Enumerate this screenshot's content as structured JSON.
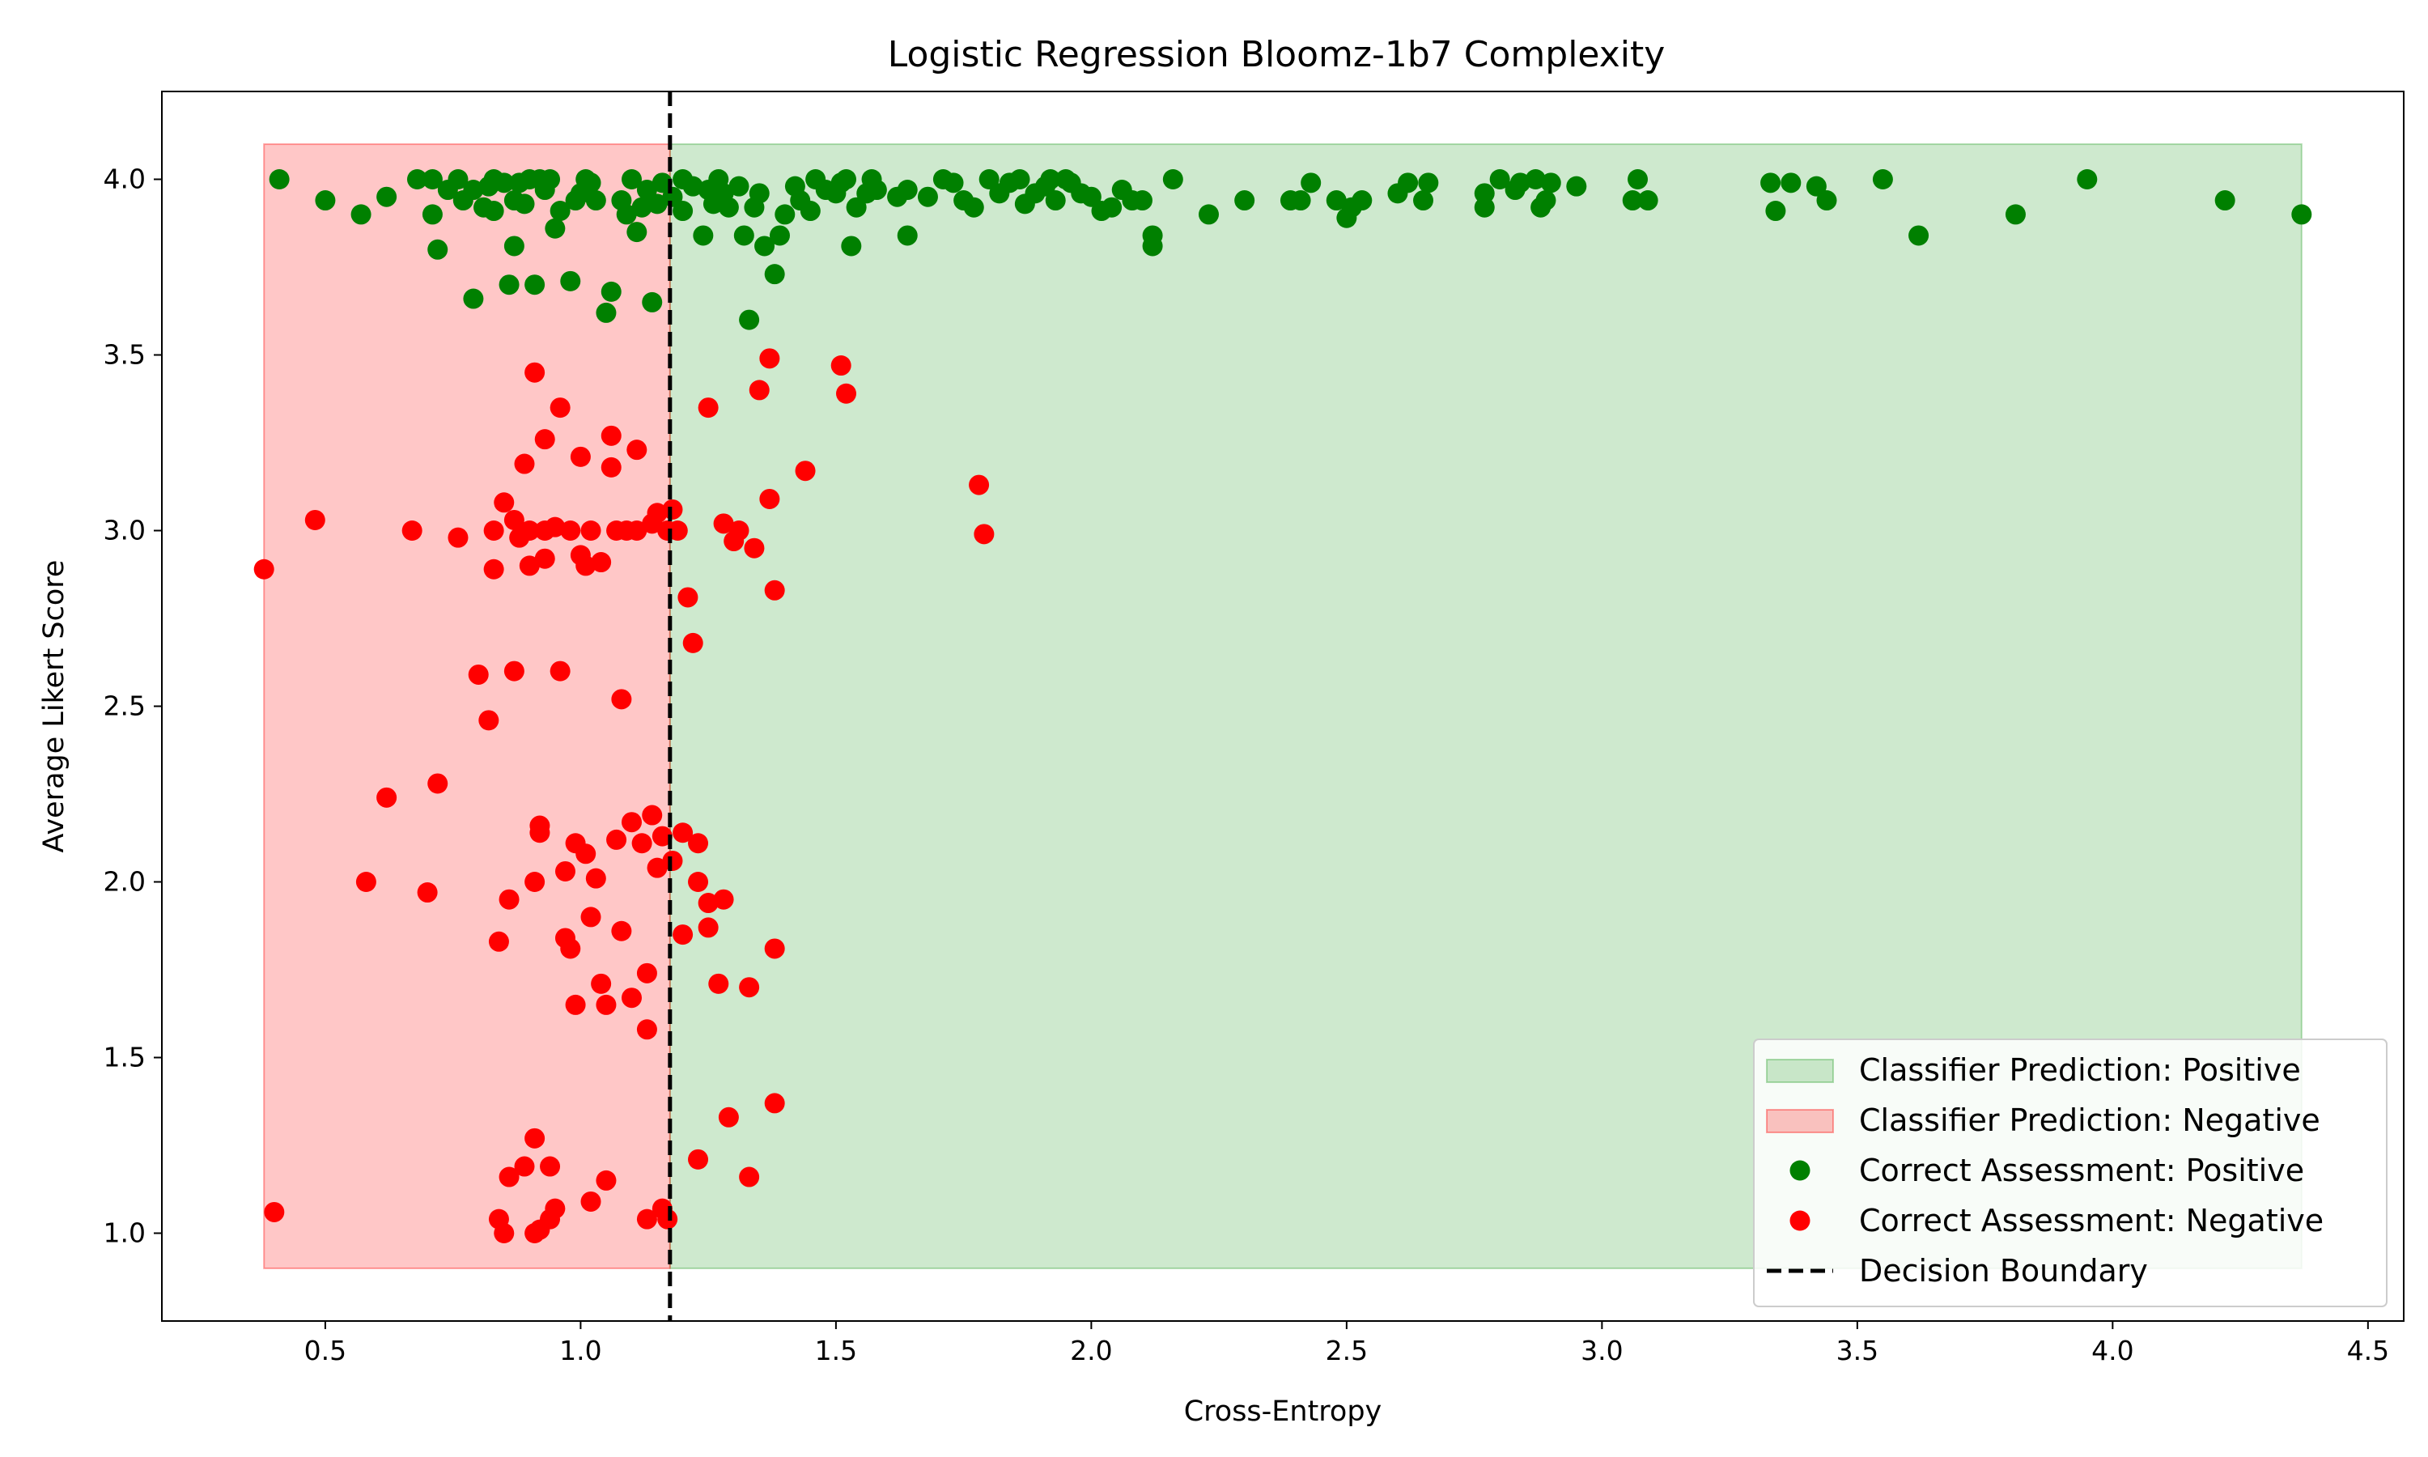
{
  "chart_data": {
    "type": "scatter",
    "title": "Logistic Regression Bloomz-1b7 Complexity",
    "xlabel": "Cross-Entropy",
    "ylabel": "Average Likert Score",
    "xlim": [
      0.18,
      4.57
    ],
    "ylim": [
      0.75,
      4.25
    ],
    "xticks": [
      "0.5",
      "1.0",
      "1.5",
      "2.0",
      "2.5",
      "3.0",
      "3.5",
      "4.0",
      "4.5"
    ],
    "yticks": [
      "1.0",
      "1.5",
      "2.0",
      "2.5",
      "3.0",
      "3.5",
      "4.0"
    ],
    "decision_boundary": 1.175,
    "regions": [
      {
        "name": "Classifier Prediction: Positive",
        "x": [
          1.175,
          4.37
        ],
        "y": [
          0.9,
          4.1
        ],
        "color": "#2ca02c"
      },
      {
        "name": "Classifier Prediction: Negative",
        "x": [
          0.38,
          1.175
        ],
        "y": [
          0.9,
          4.1
        ],
        "color": "#ff0000"
      }
    ],
    "series": [
      {
        "name": "Correct Assessment: Positive",
        "color": "#008000",
        "points": [
          [
            0.41,
            4.0
          ],
          [
            0.5,
            3.94
          ],
          [
            0.57,
            3.9
          ],
          [
            0.62,
            3.95
          ],
          [
            0.68,
            4.0
          ],
          [
            0.71,
            4.0
          ],
          [
            0.71,
            3.9
          ],
          [
            0.72,
            3.8
          ],
          [
            0.74,
            3.97
          ],
          [
            0.76,
            4.0
          ],
          [
            0.77,
            3.94
          ],
          [
            0.79,
            3.66
          ],
          [
            0.79,
            3.97
          ],
          [
            0.81,
            3.92
          ],
          [
            0.82,
            3.98
          ],
          [
            0.83,
            4.0
          ],
          [
            0.83,
            3.91
          ],
          [
            0.85,
            3.99
          ],
          [
            0.86,
            3.7
          ],
          [
            0.87,
            3.81
          ],
          [
            0.87,
            3.94
          ],
          [
            0.88,
            3.99
          ],
          [
            0.89,
            3.93
          ],
          [
            0.9,
            4.0
          ],
          [
            0.91,
            3.7
          ],
          [
            0.92,
            4.0
          ],
          [
            0.93,
            3.97
          ],
          [
            0.94,
            4.0
          ],
          [
            0.95,
            3.86
          ],
          [
            0.96,
            3.91
          ],
          [
            0.98,
            3.71
          ],
          [
            0.99,
            3.94
          ],
          [
            1.0,
            3.96
          ],
          [
            1.01,
            4.0
          ],
          [
            1.02,
            3.99
          ],
          [
            1.03,
            3.94
          ],
          [
            1.05,
            3.62
          ],
          [
            1.06,
            3.68
          ],
          [
            1.08,
            3.94
          ],
          [
            1.09,
            3.9
          ],
          [
            1.1,
            4.0
          ],
          [
            1.11,
            3.85
          ],
          [
            1.12,
            3.92
          ],
          [
            1.13,
            3.97
          ],
          [
            1.14,
            3.65
          ],
          [
            1.15,
            3.93
          ],
          [
            1.16,
            3.99
          ],
          [
            1.18,
            3.95
          ],
          [
            1.2,
            4.0
          ],
          [
            1.2,
            3.91
          ],
          [
            1.22,
            3.98
          ],
          [
            1.24,
            3.84
          ],
          [
            1.25,
            3.97
          ],
          [
            1.26,
            3.93
          ],
          [
            1.27,
            4.0
          ],
          [
            1.28,
            3.96
          ],
          [
            1.29,
            3.92
          ],
          [
            1.31,
            3.98
          ],
          [
            1.32,
            3.84
          ],
          [
            1.33,
            3.6
          ],
          [
            1.34,
            3.92
          ],
          [
            1.35,
            3.96
          ],
          [
            1.36,
            3.81
          ],
          [
            1.38,
            3.73
          ],
          [
            1.39,
            3.84
          ],
          [
            1.4,
            3.9
          ],
          [
            1.42,
            3.98
          ],
          [
            1.43,
            3.94
          ],
          [
            1.45,
            3.91
          ],
          [
            1.46,
            4.0
          ],
          [
            1.48,
            3.97
          ],
          [
            1.5,
            3.96
          ],
          [
            1.51,
            3.99
          ],
          [
            1.52,
            4.0
          ],
          [
            1.53,
            3.81
          ],
          [
            1.54,
            3.92
          ],
          [
            1.56,
            3.96
          ],
          [
            1.57,
            4.0
          ],
          [
            1.58,
            3.97
          ],
          [
            1.62,
            3.95
          ],
          [
            1.64,
            3.84
          ],
          [
            1.64,
            3.97
          ],
          [
            1.68,
            3.95
          ],
          [
            1.71,
            4.0
          ],
          [
            1.73,
            3.99
          ],
          [
            1.75,
            3.94
          ],
          [
            1.77,
            3.92
          ],
          [
            1.8,
            4.0
          ],
          [
            1.82,
            3.96
          ],
          [
            1.84,
            3.99
          ],
          [
            1.86,
            4.0
          ],
          [
            1.87,
            3.93
          ],
          [
            1.89,
            3.96
          ],
          [
            1.91,
            3.98
          ],
          [
            1.92,
            4.0
          ],
          [
            1.93,
            3.94
          ],
          [
            1.95,
            4.0
          ],
          [
            1.96,
            3.99
          ],
          [
            1.98,
            3.96
          ],
          [
            2.0,
            3.95
          ],
          [
            2.02,
            3.91
          ],
          [
            2.04,
            3.92
          ],
          [
            2.06,
            3.97
          ],
          [
            2.08,
            3.94
          ],
          [
            2.1,
            3.94
          ],
          [
            2.12,
            3.81
          ],
          [
            2.12,
            3.84
          ],
          [
            2.16,
            4.0
          ],
          [
            2.23,
            3.9
          ],
          [
            2.3,
            3.94
          ],
          [
            2.39,
            3.94
          ],
          [
            2.41,
            3.94
          ],
          [
            2.43,
            3.99
          ],
          [
            2.48,
            3.94
          ],
          [
            2.5,
            3.89
          ],
          [
            2.51,
            3.92
          ],
          [
            2.53,
            3.94
          ],
          [
            2.6,
            3.96
          ],
          [
            2.62,
            3.99
          ],
          [
            2.65,
            3.94
          ],
          [
            2.66,
            3.99
          ],
          [
            2.77,
            3.92
          ],
          [
            2.77,
            3.96
          ],
          [
            2.8,
            4.0
          ],
          [
            2.83,
            3.97
          ],
          [
            2.84,
            3.99
          ],
          [
            2.87,
            4.0
          ],
          [
            2.88,
            3.92
          ],
          [
            2.89,
            3.94
          ],
          [
            2.9,
            3.99
          ],
          [
            2.95,
            3.98
          ],
          [
            3.06,
            3.94
          ],
          [
            3.07,
            4.0
          ],
          [
            3.09,
            3.94
          ],
          [
            3.33,
            3.99
          ],
          [
            3.34,
            3.91
          ],
          [
            3.37,
            3.99
          ],
          [
            3.42,
            3.98
          ],
          [
            3.44,
            3.94
          ],
          [
            3.55,
            4.0
          ],
          [
            3.62,
            3.84
          ],
          [
            3.81,
            3.9
          ],
          [
            3.95,
            4.0
          ],
          [
            4.22,
            3.94
          ],
          [
            4.37,
            3.9
          ]
        ]
      },
      {
        "name": "Correct Assessment: Negative",
        "color": "#ff0000",
        "points": [
          [
            0.38,
            2.89
          ],
          [
            0.4,
            1.06
          ],
          [
            0.48,
            3.03
          ],
          [
            0.58,
            2.0
          ],
          [
            0.62,
            2.24
          ],
          [
            0.67,
            3.0
          ],
          [
            0.7,
            1.97
          ],
          [
            0.72,
            2.28
          ],
          [
            0.76,
            2.98
          ],
          [
            0.8,
            2.59
          ],
          [
            0.82,
            2.46
          ],
          [
            0.83,
            3.0
          ],
          [
            0.83,
            2.89
          ],
          [
            0.84,
            1.04
          ],
          [
            0.84,
            1.83
          ],
          [
            0.85,
            1.0
          ],
          [
            0.85,
            3.08
          ],
          [
            0.86,
            1.95
          ],
          [
            0.86,
            1.16
          ],
          [
            0.87,
            2.6
          ],
          [
            0.87,
            3.03
          ],
          [
            0.88,
            2.98
          ],
          [
            0.89,
            1.19
          ],
          [
            0.89,
            3.19
          ],
          [
            0.9,
            2.9
          ],
          [
            0.9,
            3.0
          ],
          [
            0.91,
            3.45
          ],
          [
            0.91,
            2.0
          ],
          [
            0.91,
            1.27
          ],
          [
            0.91,
            1.0
          ],
          [
            0.92,
            2.14
          ],
          [
            0.92,
            2.16
          ],
          [
            0.92,
            1.01
          ],
          [
            0.93,
            2.92
          ],
          [
            0.93,
            3.0
          ],
          [
            0.93,
            3.26
          ],
          [
            0.94,
            1.19
          ],
          [
            0.94,
            1.04
          ],
          [
            0.95,
            1.07
          ],
          [
            0.95,
            3.01
          ],
          [
            0.96,
            3.35
          ],
          [
            0.96,
            2.6
          ],
          [
            0.97,
            2.03
          ],
          [
            0.97,
            1.84
          ],
          [
            0.98,
            3.0
          ],
          [
            0.98,
            1.81
          ],
          [
            0.99,
            2.11
          ],
          [
            0.99,
            1.65
          ],
          [
            1.0,
            3.21
          ],
          [
            1.0,
            2.93
          ],
          [
            1.01,
            2.08
          ],
          [
            1.01,
            2.9
          ],
          [
            1.02,
            1.9
          ],
          [
            1.02,
            3.0
          ],
          [
            1.02,
            1.09
          ],
          [
            1.03,
            2.01
          ],
          [
            1.04,
            1.71
          ],
          [
            1.04,
            2.91
          ],
          [
            1.05,
            1.15
          ],
          [
            1.05,
            1.65
          ],
          [
            1.06,
            3.27
          ],
          [
            1.06,
            3.18
          ],
          [
            1.07,
            2.12
          ],
          [
            1.07,
            3.0
          ],
          [
            1.08,
            1.86
          ],
          [
            1.08,
            2.52
          ],
          [
            1.09,
            3.0
          ],
          [
            1.1,
            1.67
          ],
          [
            1.1,
            2.17
          ],
          [
            1.11,
            3.23
          ],
          [
            1.11,
            3.0
          ],
          [
            1.12,
            2.11
          ],
          [
            1.13,
            1.58
          ],
          [
            1.13,
            1.74
          ],
          [
            1.13,
            1.04
          ],
          [
            1.14,
            3.02
          ],
          [
            1.14,
            2.19
          ],
          [
            1.15,
            3.05
          ],
          [
            1.15,
            2.04
          ],
          [
            1.16,
            2.13
          ],
          [
            1.16,
            1.07
          ],
          [
            1.17,
            1.04
          ],
          [
            1.17,
            3.0
          ],
          [
            1.18,
            2.06
          ],
          [
            1.18,
            3.06
          ],
          [
            1.19,
            3.0
          ],
          [
            1.2,
            2.14
          ],
          [
            1.2,
            1.85
          ],
          [
            1.21,
            2.81
          ],
          [
            1.22,
            2.68
          ],
          [
            1.23,
            2.11
          ],
          [
            1.23,
            2.0
          ],
          [
            1.23,
            1.21
          ],
          [
            1.25,
            3.35
          ],
          [
            1.25,
            1.94
          ],
          [
            1.25,
            1.87
          ],
          [
            1.27,
            1.71
          ],
          [
            1.28,
            1.95
          ],
          [
            1.28,
            3.02
          ],
          [
            1.29,
            1.33
          ],
          [
            1.3,
            2.97
          ],
          [
            1.31,
            3.0
          ],
          [
            1.33,
            1.7
          ],
          [
            1.33,
            1.16
          ],
          [
            1.34,
            2.95
          ],
          [
            1.35,
            3.4
          ],
          [
            1.37,
            3.49
          ],
          [
            1.37,
            3.09
          ],
          [
            1.38,
            2.83
          ],
          [
            1.38,
            1.81
          ],
          [
            1.38,
            1.37
          ],
          [
            1.44,
            3.17
          ],
          [
            1.51,
            3.47
          ],
          [
            1.52,
            3.39
          ],
          [
            1.78,
            3.13
          ],
          [
            1.79,
            2.99
          ]
        ]
      }
    ],
    "legend": {
      "position": "lower right",
      "entries": [
        "Classifier Prediction: Positive",
        "Classifier Prediction: Negative",
        "Correct Assessment: Positive",
        "Correct Assessment: Negative",
        "Decision Boundary"
      ]
    }
  }
}
